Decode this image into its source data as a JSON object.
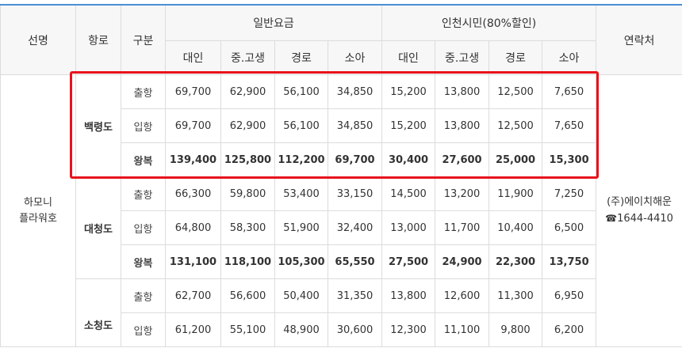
{
  "headers": {
    "ship": "선명",
    "route": "항로",
    "type": "구분",
    "general_group": "일반요금",
    "incheon_group": "인천시민(80%할인)",
    "contact": "연락처",
    "sub": [
      "대인",
      "중.고생",
      "경로",
      "소아",
      "대인",
      "중.고생",
      "경로",
      "소아"
    ]
  },
  "ship": {
    "line1": "하모니",
    "line2": "플라워호"
  },
  "contact": {
    "line1": "(주)에이치해운",
    "phone_icon": "phone-icon",
    "line2": "1644-4410"
  },
  "routes": [
    {
      "name": "백령도",
      "rows": [
        {
          "type": "출항",
          "values": [
            "69,700",
            "62,900",
            "56,100",
            "34,850",
            "15,200",
            "13,800",
            "12,500",
            "7,650"
          ]
        },
        {
          "type": "입항",
          "values": [
            "69,700",
            "62,900",
            "56,100",
            "34,850",
            "15,200",
            "13,800",
            "12,500",
            "7,650"
          ]
        },
        {
          "type": "왕복",
          "values": [
            "139,400",
            "125,800",
            "112,200",
            "69,700",
            "30,400",
            "27,600",
            "25,000",
            "15,300"
          ]
        }
      ]
    },
    {
      "name": "대청도",
      "rows": [
        {
          "type": "출항",
          "values": [
            "66,300",
            "59,800",
            "53,400",
            "33,150",
            "14,500",
            "13,200",
            "11,900",
            "7,250"
          ]
        },
        {
          "type": "입항",
          "values": [
            "64,800",
            "58,300",
            "51,900",
            "32,400",
            "13,000",
            "11,700",
            "10,400",
            "6,500"
          ]
        },
        {
          "type": "왕복",
          "values": [
            "131,100",
            "118,100",
            "105,300",
            "65,550",
            "27,500",
            "24,900",
            "22,300",
            "13,750"
          ]
        }
      ]
    },
    {
      "name": "소청도",
      "rows": [
        {
          "type": "출항",
          "values": [
            "62,700",
            "56,600",
            "50,400",
            "31,350",
            "13,800",
            "12,600",
            "11,300",
            "6,950"
          ]
        },
        {
          "type": "입항",
          "values": [
            "61,200",
            "55,100",
            "48,900",
            "30,600",
            "12,300",
            "11,100",
            "9,800",
            "6,200"
          ]
        }
      ]
    }
  ],
  "colors": {
    "accent_border": "#4a8fd4",
    "highlight": "#e8121c"
  }
}
